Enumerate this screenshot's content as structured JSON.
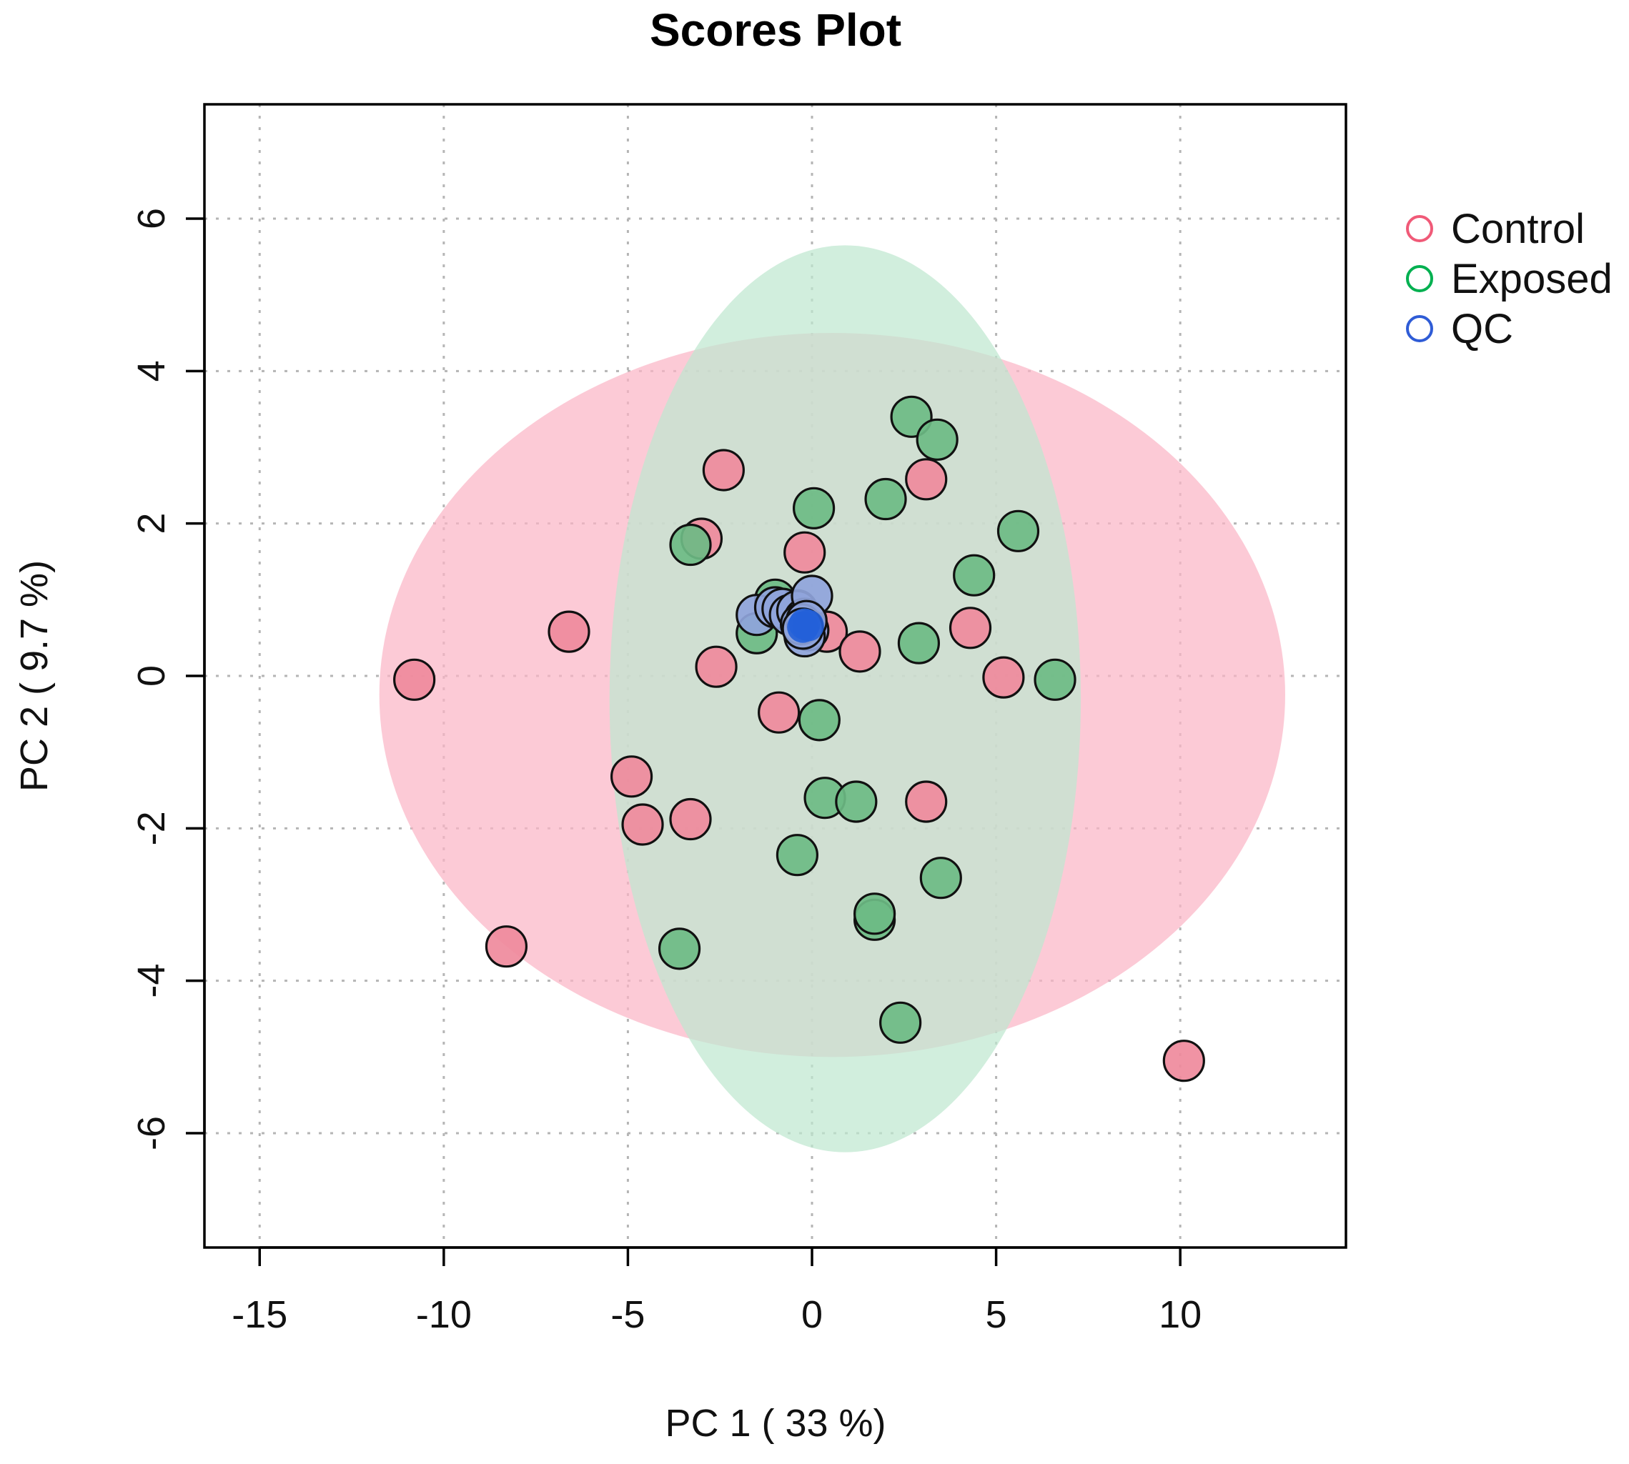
{
  "chart_data": {
    "type": "scatter",
    "title": "Scores Plot",
    "xlabel": "PC 1 ( 33 %)",
    "ylabel": "PC 2 ( 9.7 %)",
    "xlim": [
      -16.5,
      14.5
    ],
    "ylim": [
      -7.5,
      7.5
    ],
    "xticks": [
      -15,
      -10,
      -5,
      0,
      5,
      10
    ],
    "yticks": [
      -6,
      -4,
      -2,
      0,
      2,
      4,
      6
    ],
    "xtick_labels": [
      "-15",
      "-10",
      "-5",
      "0",
      "5",
      "10"
    ],
    "ytick_labels": [
      "-6",
      "-4",
      "-2",
      "0",
      "2",
      "4",
      "6"
    ],
    "grid": true,
    "legend_position": "right",
    "series": [
      {
        "name": "Control",
        "color": "#f05a78",
        "fill": "#ef8a9c",
        "ellipse": {
          "center": [
            0.55,
            -0.25
          ],
          "rx": 12.3,
          "ry": 4.75,
          "color": "#fbb6c6"
        },
        "points": [
          [
            -10.8,
            -0.05
          ],
          [
            -8.3,
            -3.55
          ],
          [
            -6.6,
            0.58
          ],
          [
            -4.9,
            -1.32
          ],
          [
            -4.6,
            -1.95
          ],
          [
            -3.3,
            -1.88
          ],
          [
            -3.0,
            1.8
          ],
          [
            -2.4,
            2.7
          ],
          [
            -2.6,
            0.12
          ],
          [
            -0.9,
            -0.48
          ],
          [
            -0.2,
            1.62
          ],
          [
            0.4,
            0.58
          ],
          [
            1.3,
            0.32
          ],
          [
            3.1,
            2.58
          ],
          [
            4.3,
            0.63
          ],
          [
            5.2,
            -0.02
          ],
          [
            3.1,
            -1.65
          ],
          [
            10.1,
            -5.05
          ],
          [
            -0.4,
            0.86
          ]
        ]
      },
      {
        "name": "Exposed",
        "color": "#00b050",
        "fill": "#6dbb84",
        "ellipse": {
          "center": [
            0.9,
            -0.3
          ],
          "rx": 6.4,
          "ry": 5.95,
          "color": "#bfe8d0"
        },
        "points": [
          [
            -3.3,
            1.72
          ],
          [
            -1.5,
            0.56
          ],
          [
            -1.0,
            1.0
          ],
          [
            0.05,
            2.2
          ],
          [
            2.0,
            2.32
          ],
          [
            2.7,
            3.4
          ],
          [
            3.4,
            3.1
          ],
          [
            5.6,
            1.9
          ],
          [
            4.4,
            1.32
          ],
          [
            2.9,
            0.43
          ],
          [
            6.6,
            -0.05
          ],
          [
            0.2,
            -0.58
          ],
          [
            0.35,
            -1.6
          ],
          [
            1.2,
            -1.65
          ],
          [
            -0.4,
            -2.35
          ],
          [
            1.7,
            -3.2
          ],
          [
            1.7,
            -3.12
          ],
          [
            3.5,
            -2.65
          ],
          [
            -3.6,
            -3.58
          ],
          [
            2.4,
            -4.55
          ]
        ]
      },
      {
        "name": "QC",
        "color": "#2f5cd6",
        "fill": "#8fa4db",
        "points": [
          [
            -1.5,
            0.8
          ],
          [
            -1.0,
            0.9
          ],
          [
            -0.8,
            0.88
          ],
          [
            -0.6,
            0.8
          ],
          [
            -0.4,
            0.85
          ],
          [
            -0.2,
            0.75
          ],
          [
            0.0,
            1.05
          ],
          [
            -0.1,
            0.6
          ],
          [
            -0.2,
            0.52
          ],
          [
            -0.3,
            0.68
          ],
          [
            -0.15,
            0.72
          ],
          [
            -0.25,
            0.62
          ]
        ]
      }
    ],
    "qc_dark_points": [
      [
        -0.2,
        0.68
      ],
      [
        -0.25,
        0.64
      ],
      [
        -0.1,
        0.66
      ]
    ],
    "qc_dark_color": "#2360d8"
  }
}
